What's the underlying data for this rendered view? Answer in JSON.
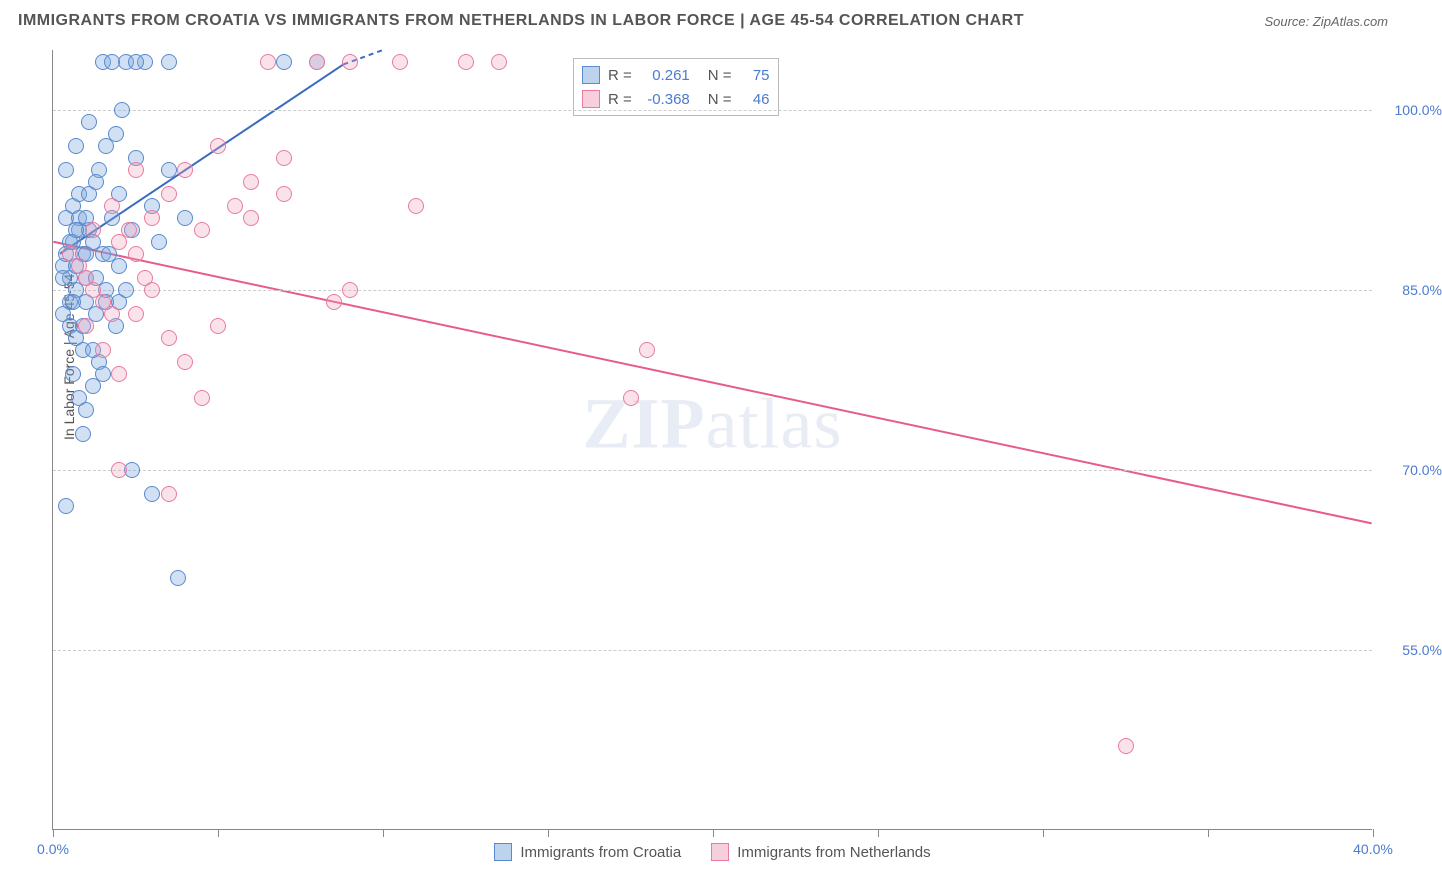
{
  "title": "IMMIGRANTS FROM CROATIA VS IMMIGRANTS FROM NETHERLANDS IN LABOR FORCE | AGE 45-54 CORRELATION CHART",
  "source": "Source: ZipAtlas.com",
  "ylabel": "In Labor Force | Age 45-54",
  "watermark_a": "ZIP",
  "watermark_b": "atlas",
  "chart": {
    "type": "scatter",
    "background_color": "#ffffff",
    "grid_color": "#cccccc",
    "axis_color": "#888888",
    "label_color": "#4a7bd0",
    "title_color": "#555555",
    "title_fontsize": 16,
    "label_fontsize": 14,
    "xlim": [
      0,
      40
    ],
    "ylim": [
      40,
      105
    ],
    "xticks": [
      0,
      5,
      10,
      15,
      20,
      25,
      30,
      35,
      40
    ],
    "xtick_labels": {
      "0": "0.0%",
      "40": "40.0%"
    },
    "yticks": [
      55,
      70,
      85,
      100
    ],
    "ytick_labels": {
      "55": "55.0%",
      "70": "70.0%",
      "85": "85.0%",
      "100": "100.0%"
    },
    "marker_radius": 8,
    "series": [
      {
        "id": "croatia",
        "label": "Immigrants from Croatia",
        "color_fill": "rgba(122,165,220,0.35)",
        "color_stroke": "#5a8bd0",
        "R": "0.261",
        "N": "75",
        "trend": {
          "x1": 0.2,
          "y1": 88.0,
          "x2": 10.0,
          "y2": 106.0,
          "color": "#3a6bc0",
          "width": 2,
          "dash_after_x": 8.8
        },
        "points": [
          [
            0.3,
            87
          ],
          [
            0.4,
            88
          ],
          [
            0.5,
            86
          ],
          [
            0.6,
            89
          ],
          [
            0.7,
            85
          ],
          [
            0.8,
            90
          ],
          [
            0.5,
            84
          ],
          [
            0.7,
            87
          ],
          [
            0.9,
            88
          ],
          [
            1.0,
            86
          ],
          [
            0.4,
            91
          ],
          [
            0.6,
            92
          ],
          [
            0.8,
            93
          ],
          [
            1.1,
            90
          ],
          [
            1.2,
            89
          ],
          [
            0.3,
            83
          ],
          [
            0.5,
            82
          ],
          [
            0.7,
            81
          ],
          [
            0.9,
            80
          ],
          [
            1.0,
            84
          ],
          [
            1.5,
            88
          ],
          [
            1.8,
            91
          ],
          [
            2.0,
            93
          ],
          [
            2.2,
            104
          ],
          [
            2.5,
            96
          ],
          [
            2.8,
            104
          ],
          [
            3.0,
            92
          ],
          [
            3.2,
            89
          ],
          [
            1.2,
            77
          ],
          [
            1.4,
            79
          ],
          [
            0.6,
            78
          ],
          [
            0.8,
            76
          ],
          [
            1.0,
            75
          ],
          [
            2.5,
            104
          ],
          [
            1.9,
            98
          ],
          [
            0.4,
            95
          ],
          [
            0.7,
            97
          ],
          [
            1.1,
            99
          ],
          [
            1.5,
            104
          ],
          [
            1.8,
            104
          ],
          [
            2.1,
            100
          ],
          [
            3.5,
            95
          ],
          [
            4.0,
            91
          ],
          [
            0.9,
            73
          ],
          [
            1.3,
            83
          ],
          [
            1.6,
            85
          ],
          [
            2.0,
            87
          ],
          [
            2.4,
            90
          ],
          [
            0.5,
            89
          ],
          [
            0.8,
            91
          ],
          [
            1.1,
            93
          ],
          [
            1.4,
            95
          ],
          [
            1.7,
            88
          ],
          [
            2.0,
            84
          ],
          [
            0.3,
            86
          ],
          [
            0.6,
            84
          ],
          [
            0.9,
            82
          ],
          [
            1.2,
            80
          ],
          [
            1.5,
            78
          ],
          [
            2.4,
            70
          ],
          [
            3.0,
            68
          ],
          [
            1.0,
            91
          ],
          [
            1.3,
            94
          ],
          [
            1.6,
            97
          ],
          [
            0.7,
            90
          ],
          [
            1.0,
            88
          ],
          [
            1.3,
            86
          ],
          [
            1.6,
            84
          ],
          [
            1.9,
            82
          ],
          [
            2.2,
            85
          ],
          [
            7.0,
            104
          ],
          [
            8.0,
            104
          ],
          [
            3.5,
            104
          ],
          [
            3.8,
            61
          ],
          [
            0.4,
            67
          ]
        ]
      },
      {
        "id": "netherlands",
        "label": "Immigrants from Netherlands",
        "color_fill": "rgba(240,160,185,0.30)",
        "color_stroke": "#e87ca0",
        "R": "-0.368",
        "N": "46",
        "trend": {
          "x1": 0.0,
          "y1": 89.0,
          "x2": 40.0,
          "y2": 65.5,
          "color": "#e85a8a",
          "width": 2
        },
        "points": [
          [
            0.5,
            88
          ],
          [
            0.8,
            87
          ],
          [
            1.0,
            86
          ],
          [
            1.2,
            85
          ],
          [
            1.5,
            84
          ],
          [
            1.8,
            83
          ],
          [
            2.0,
            89
          ],
          [
            2.3,
            90
          ],
          [
            2.5,
            88
          ],
          [
            2.8,
            86
          ],
          [
            3.0,
            91
          ],
          [
            3.5,
            93
          ],
          [
            4.0,
            95
          ],
          [
            4.5,
            90
          ],
          [
            5.0,
            97
          ],
          [
            5.5,
            92
          ],
          [
            6.0,
            94
          ],
          [
            6.5,
            104
          ],
          [
            7.0,
            96
          ],
          [
            8.0,
            104
          ],
          [
            9.0,
            104
          ],
          [
            10.5,
            104
          ],
          [
            11.0,
            92
          ],
          [
            12.5,
            104
          ],
          [
            13.5,
            104
          ],
          [
            1.0,
            82
          ],
          [
            1.5,
            80
          ],
          [
            2.0,
            78
          ],
          [
            2.5,
            83
          ],
          [
            3.0,
            85
          ],
          [
            3.5,
            81
          ],
          [
            4.0,
            79
          ],
          [
            5.0,
            82
          ],
          [
            6.0,
            91
          ],
          [
            7.0,
            93
          ],
          [
            8.5,
            84
          ],
          [
            9.0,
            85
          ],
          [
            2.0,
            70
          ],
          [
            3.5,
            68
          ],
          [
            4.5,
            76
          ],
          [
            1.2,
            90
          ],
          [
            1.8,
            92
          ],
          [
            18.0,
            80
          ],
          [
            17.5,
            76
          ],
          [
            32.5,
            47
          ],
          [
            2.5,
            95
          ]
        ]
      }
    ]
  },
  "legend_top": {
    "R_label": "R =",
    "N_label": "N ="
  }
}
